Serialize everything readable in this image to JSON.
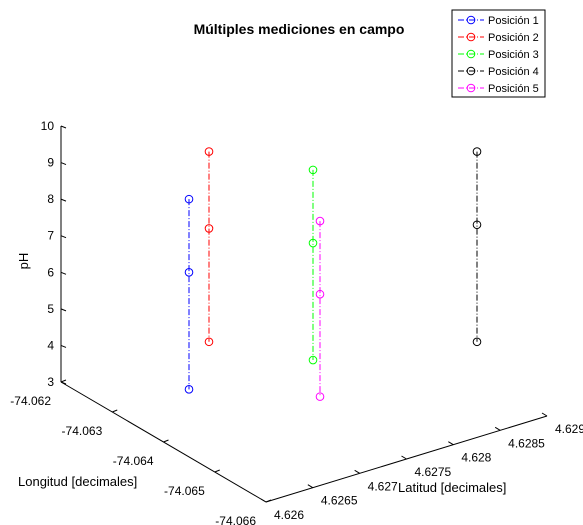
{
  "chart_data": {
    "type": "scatter",
    "title": "Múltiples mediciones en campo",
    "xlabel": "Latitud [decimales]",
    "ylabel": "Longitud [decimales]",
    "zlabel": "pH",
    "x_ticks": [
      "4.626",
      "4.6265",
      "4.627",
      "4.6275",
      "4.628",
      "4.6285",
      "4.629"
    ],
    "y_ticks": [
      "-74.062",
      "-74.063",
      "-74.064",
      "-74.065",
      "-74.066"
    ],
    "z_ticks": [
      "3",
      "4",
      "5",
      "6",
      "7",
      "8",
      "9",
      "10"
    ],
    "z_range": [
      3,
      10
    ],
    "legend_position": "top-right",
    "series": [
      {
        "name": "Posición 1",
        "color": "#0000ff",
        "line_style": "dash-dot",
        "marker": "circle",
        "values": [
          8.0,
          6.0,
          2.8
        ]
      },
      {
        "name": "Posición 2",
        "color": "#ff0000",
        "line_style": "dash-dot",
        "marker": "circle",
        "values": [
          9.3,
          7.2,
          4.1
        ]
      },
      {
        "name": "Posición 3",
        "color": "#00ff00",
        "line_style": "dash-dot",
        "marker": "circle",
        "values": [
          8.8,
          6.8,
          3.6
        ]
      },
      {
        "name": "Posición 4",
        "color": "#000000",
        "line_style": "dash-dot",
        "marker": "circle",
        "values": [
          9.3,
          7.3,
          4.1
        ]
      },
      {
        "name": "Posición 5",
        "color": "#ff00ff",
        "line_style": "dash-dot",
        "marker": "circle",
        "values": [
          7.4,
          5.4,
          2.6
        ]
      }
    ]
  }
}
